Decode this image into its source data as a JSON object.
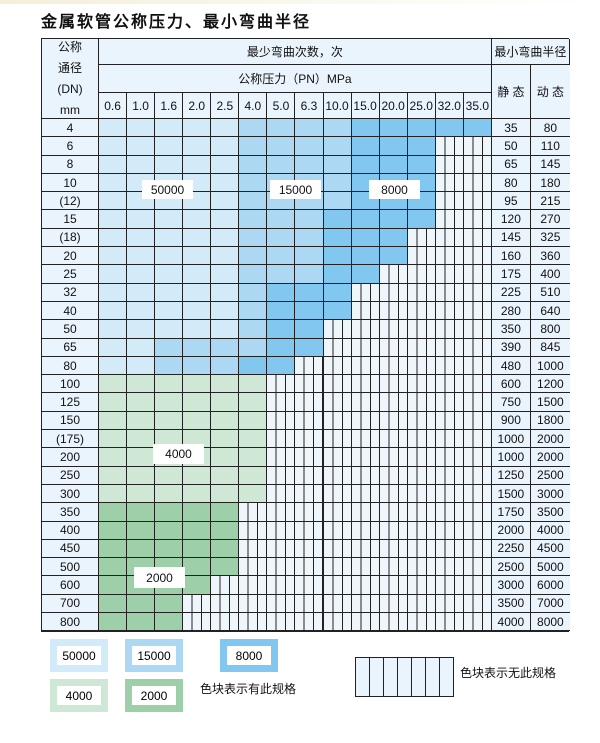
{
  "title": "金属软管公称压力、最小弯曲半径",
  "table": {
    "dn_header": [
      "公称",
      "通径",
      "(DN)",
      "mm"
    ],
    "cycles_header": "最少弯曲次数，次",
    "pressure_header": "公称压力（PN）MPa",
    "radius_header": "最小弯曲半径",
    "static_header": "静 态",
    "dynamic_header": "动 态",
    "pressures": [
      "0.6",
      "1.0",
      "1.6",
      "2.0",
      "2.5",
      "4.0",
      "5.0",
      "6.3",
      "10.0",
      "15.0",
      "20.0",
      "25.0",
      "32.0",
      "35.0"
    ],
    "rows": [
      {
        "dn": "4",
        "static": "35",
        "dynamic": "80",
        "cells": "LLLLLMMMMDDDDD"
      },
      {
        "dn": "6",
        "static": "50",
        "dynamic": "110",
        "cells": "LLLLLMMMMDDD--"
      },
      {
        "dn": "8",
        "static": "65",
        "dynamic": "145",
        "cells": "LLLLLMMMMDDD--"
      },
      {
        "dn": "10",
        "static": "80",
        "dynamic": "180",
        "cells": "LLLLLMMMMDDD--"
      },
      {
        "dn": "(12)",
        "static": "95",
        "dynamic": "215",
        "cells": "LLLLLMMMMDDD--"
      },
      {
        "dn": "15",
        "static": "120",
        "dynamic": "270",
        "cells": "LLLLLMMMDDDD--"
      },
      {
        "dn": "(18)",
        "static": "145",
        "dynamic": "325",
        "cells": "LLLLLMMMDDD---"
      },
      {
        "dn": "20",
        "static": "160",
        "dynamic": "360",
        "cells": "LLLLLMMMDDD---"
      },
      {
        "dn": "25",
        "static": "175",
        "dynamic": "400",
        "cells": "LLLLLMMMDD----"
      },
      {
        "dn": "32",
        "static": "225",
        "dynamic": "510",
        "cells": "LLLLLMDDD-----"
      },
      {
        "dn": "40",
        "static": "280",
        "dynamic": "640",
        "cells": "LLLLLMDDD-----"
      },
      {
        "dn": "50",
        "static": "350",
        "dynamic": "800",
        "cells": "LLLLLMDD------"
      },
      {
        "dn": "65",
        "static": "390",
        "dynamic": "845",
        "cells": "LLMMMMDD------"
      },
      {
        "dn": "80",
        "static": "480",
        "dynamic": "1000",
        "cells": "LLMMMDD-------"
      },
      {
        "dn": "100",
        "static": "600",
        "dynamic": "1200",
        "cells": "GGGGGG--------"
      },
      {
        "dn": "125",
        "static": "750",
        "dynamic": "1500",
        "cells": "GGGGGG--------"
      },
      {
        "dn": "150",
        "static": "900",
        "dynamic": "1800",
        "cells": "GGGGGG--------"
      },
      {
        "dn": "(175)",
        "static": "1000",
        "dynamic": "2000",
        "cells": "GGGGGG--------"
      },
      {
        "dn": "200",
        "static": "1000",
        "dynamic": "2000",
        "cells": "GGGGGG--------"
      },
      {
        "dn": "250",
        "static": "1250",
        "dynamic": "2500",
        "cells": "GGGGGG--------"
      },
      {
        "dn": "300",
        "static": "1500",
        "dynamic": "3000",
        "cells": "GGGGGG--------"
      },
      {
        "dn": "350",
        "static": "1750",
        "dynamic": "3500",
        "cells": "HHHHH---------"
      },
      {
        "dn": "400",
        "static": "2000",
        "dynamic": "4000",
        "cells": "HHHHH---------"
      },
      {
        "dn": "450",
        "static": "2250",
        "dynamic": "4500",
        "cells": "HHHHH---------"
      },
      {
        "dn": "500",
        "static": "2500",
        "dynamic": "5000",
        "cells": "HHHHH---------"
      },
      {
        "dn": "600",
        "static": "3000",
        "dynamic": "6000",
        "cells": "HHHH----------"
      },
      {
        "dn": "700",
        "static": "3500",
        "dynamic": "7000",
        "cells": "HHH-----------"
      },
      {
        "dn": "800",
        "static": "4000",
        "dynamic": "8000",
        "cells": "HHH-----------"
      }
    ],
    "zone_labels": {
      "L": "50000",
      "M": "15000",
      "D": "8000",
      "G": "4000",
      "H": "2000"
    }
  },
  "colors": {
    "L": "#d3eaf8",
    "M": "#acd8f3",
    "D": "#82c7ef",
    "G": "#cfe7d5",
    "H": "#9dd0a8",
    "empty": "#eef5fb"
  },
  "legend": {
    "items": [
      "50000",
      "15000",
      "8000",
      "4000",
      "2000"
    ],
    "available_text": "色块表示有此规格",
    "unavailable_text": "色块表示无此规格"
  }
}
